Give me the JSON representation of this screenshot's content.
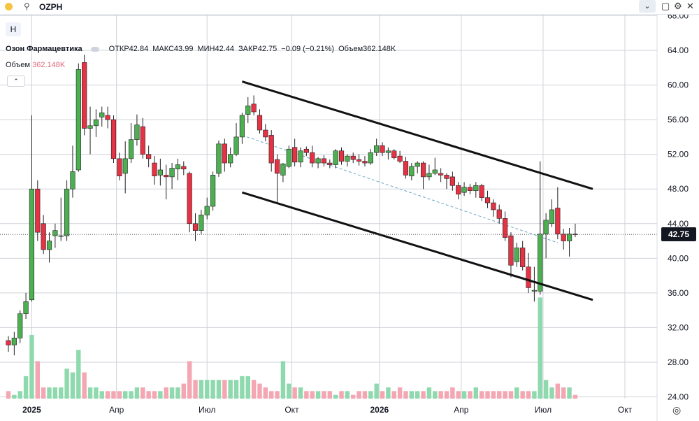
{
  "header": {
    "symbol": "OZPH",
    "search_icon": "search-icon",
    "dropdown_label": "⌄"
  },
  "toolbar": {
    "h_label": "H",
    "collapse_label": "⌃"
  },
  "legend": {
    "name": "Озон Фармацевтика",
    "open": "ОТКР42.84",
    "high": "МАКС43.99",
    "low": "МИН42.44",
    "close": "ЗАКР42.75",
    "change": "−0.09 (−0.21%)",
    "volume": "Объем362.148K",
    "volume_label": "Объем",
    "volume_value": "362.148K"
  },
  "last_price": "42.75",
  "colors": {
    "up": "#4caf50",
    "down": "#e53245",
    "vol_up": "#8ed9ad",
    "vol_down": "#f4a6b2",
    "channel": "#111111",
    "midline": "#6aa8c8"
  },
  "chart_data": {
    "type": "candlestick",
    "yaxis": {
      "ticks": [
        24,
        28,
        32,
        36,
        40,
        44,
        48,
        52,
        56,
        60,
        64,
        68
      ],
      "range": [
        23.8,
        68.2
      ]
    },
    "xaxis": {
      "labels": [
        "2025",
        "Апр",
        "Июл",
        "Окт",
        "2026",
        "Апр",
        "Июл",
        "Окт"
      ],
      "bold": [
        "2025",
        "2026"
      ]
    },
    "candles": [
      [
        30.5,
        31.0,
        29.2,
        30.0
      ],
      [
        30.0,
        31.5,
        28.8,
        30.8
      ],
      [
        30.8,
        34.0,
        30.2,
        33.6
      ],
      [
        33.6,
        36.0,
        33.0,
        35.0
      ],
      [
        35.2,
        56.5,
        35.0,
        48.0
      ],
      [
        48.0,
        49.0,
        42.0,
        43.0
      ],
      [
        44.0,
        45.0,
        40.5,
        41.0
      ],
      [
        41.0,
        43.0,
        39.5,
        42.0
      ],
      [
        42.6,
        44.0,
        41.2,
        43.2
      ],
      [
        42.6,
        47.0,
        42.0,
        42.6
      ],
      [
        42.6,
        49.0,
        42.0,
        48.0
      ],
      [
        48.0,
        53.0,
        47.0,
        50.0
      ],
      [
        50.2,
        62.5,
        50.0,
        61.8
      ],
      [
        62.6,
        63.5,
        54.2,
        55.0
      ],
      [
        55.0,
        57.5,
        52.0,
        55.3
      ],
      [
        55.3,
        57.2,
        54.0,
        56.0
      ],
      [
        56.3,
        57.5,
        55.2,
        56.8
      ],
      [
        56.5,
        57.5,
        55.0,
        56.0
      ],
      [
        56.0,
        56.5,
        51.0,
        51.5
      ],
      [
        51.5,
        52.2,
        49.0,
        49.5
      ],
      [
        49.8,
        53.5,
        47.5,
        51.5
      ],
      [
        51.5,
        55.6,
        51.0,
        53.7
      ],
      [
        53.7,
        56.6,
        53.0,
        55.4
      ],
      [
        55.2,
        56.2,
        51.5,
        52.0
      ],
      [
        52.0,
        53.0,
        50.5,
        51.5
      ],
      [
        51.0,
        51.8,
        48.5,
        49.5
      ],
      [
        49.6,
        51.5,
        48.4,
        50.2
      ],
      [
        49.6,
        50.8,
        46.8,
        49.4
      ],
      [
        49.4,
        51.0,
        48.0,
        50.4
      ],
      [
        50.3,
        51.5,
        49.0,
        50.8
      ],
      [
        50.6,
        51.2,
        49.6,
        50.3
      ],
      [
        49.8,
        50.0,
        43.0,
        44.0
      ],
      [
        44.0,
        45.2,
        42.0,
        43.2
      ],
      [
        43.2,
        45.6,
        42.8,
        45.0
      ],
      [
        45.0,
        47.0,
        44.5,
        46.0
      ],
      [
        46.0,
        50.0,
        45.5,
        49.6
      ],
      [
        49.8,
        53.6,
        49.4,
        53.2
      ],
      [
        53.2,
        53.8,
        50.0,
        51.0
      ],
      [
        51.0,
        52.8,
        50.5,
        52.0
      ],
      [
        52.0,
        55.6,
        51.8,
        54.0
      ],
      [
        54.0,
        56.8,
        53.2,
        56.5
      ],
      [
        56.6,
        58.6,
        55.6,
        57.6
      ],
      [
        57.8,
        58.8,
        56.5,
        56.9
      ],
      [
        56.5,
        57.2,
        54.4,
        54.8
      ],
      [
        54.8,
        55.5,
        53.5,
        54.0
      ],
      [
        54.2,
        54.8,
        50.0,
        51.0
      ],
      [
        51.4,
        52.0,
        46.5,
        49.8
      ],
      [
        49.6,
        51.0,
        48.8,
        50.9
      ],
      [
        50.6,
        53.0,
        50.4,
        52.6
      ],
      [
        52.8,
        53.8,
        50.6,
        51.1
      ],
      [
        51.1,
        52.8,
        50.5,
        52.4
      ],
      [
        52.6,
        52.9,
        51.8,
        52.2
      ],
      [
        52.2,
        53.0,
        50.5,
        51.0
      ],
      [
        51.0,
        51.7,
        50.4,
        51.5
      ],
      [
        51.5,
        51.9,
        50.6,
        51.0
      ],
      [
        51.0,
        51.4,
        50.4,
        50.8
      ],
      [
        50.8,
        52.6,
        50.4,
        52.4
      ],
      [
        52.4,
        52.8,
        50.8,
        51.2
      ],
      [
        51.2,
        52.0,
        50.6,
        51.8
      ],
      [
        51.8,
        52.2,
        51.0,
        51.4
      ],
      [
        51.4,
        52.0,
        50.7,
        51.2
      ],
      [
        51.2,
        51.8,
        50.6,
        51.0
      ],
      [
        51.0,
        52.6,
        50.8,
        52.2
      ],
      [
        52.2,
        53.8,
        51.8,
        53.0
      ],
      [
        53.0,
        53.4,
        51.8,
        52.2
      ],
      [
        52.2,
        52.8,
        51.4,
        52.4
      ],
      [
        52.4,
        52.6,
        51.4,
        51.6
      ],
      [
        51.8,
        52.4,
        51.0,
        51.2
      ],
      [
        51.2,
        51.7,
        49.2,
        49.6
      ],
      [
        49.5,
        51.0,
        49.0,
        50.6
      ],
      [
        50.6,
        51.2,
        49.8,
        51.0
      ],
      [
        51.0,
        51.2,
        48.0,
        49.4
      ],
      [
        49.4,
        50.8,
        49.0,
        49.8
      ],
      [
        49.8,
        51.6,
        49.6,
        50.2
      ],
      [
        49.8,
        50.4,
        48.8,
        49.6
      ],
      [
        49.6,
        49.8,
        48.0,
        49.2
      ],
      [
        49.4,
        50.0,
        47.8,
        48.4
      ],
      [
        48.4,
        48.8,
        46.8,
        47.4
      ],
      [
        47.6,
        48.8,
        47.2,
        48.2
      ],
      [
        48.2,
        48.6,
        47.4,
        47.8
      ],
      [
        47.8,
        48.8,
        47.0,
        48.4
      ],
      [
        48.4,
        48.6,
        46.6,
        47.0
      ],
      [
        47.0,
        47.8,
        45.8,
        46.4
      ],
      [
        46.4,
        46.8,
        44.8,
        45.6
      ],
      [
        45.6,
        46.2,
        44.0,
        44.6
      ],
      [
        44.6,
        45.4,
        42.0,
        42.4
      ],
      [
        42.6,
        43.0,
        37.8,
        39.2
      ],
      [
        39.6,
        41.8,
        39.0,
        41.2
      ],
      [
        41.2,
        42.0,
        38.6,
        39.0
      ],
      [
        39.0,
        40.6,
        36.0,
        36.6
      ],
      [
        36.2,
        39.0,
        35.0,
        36.3
      ],
      [
        36.2,
        51.2,
        35.8,
        42.8
      ],
      [
        42.8,
        45.2,
        40.0,
        44.4
      ],
      [
        44.0,
        46.8,
        43.6,
        45.6
      ],
      [
        45.8,
        48.2,
        42.2,
        42.8
      ],
      [
        42.8,
        43.4,
        41.0,
        42.0
      ],
      [
        42.0,
        43.5,
        40.2,
        42.8
      ],
      [
        42.8,
        43.99,
        42.44,
        42.75
      ]
    ],
    "volume": [
      2,
      1,
      2,
      6,
      17,
      10,
      3,
      3,
      3,
      3,
      8,
      7,
      13,
      7,
      3,
      3,
      2,
      2,
      2,
      2,
      2,
      2,
      3,
      3,
      2,
      2,
      2,
      3,
      3,
      3,
      4,
      10,
      5,
      5,
      5,
      5,
      5,
      5,
      5,
      5,
      6,
      6,
      5,
      4,
      3,
      2,
      2,
      10,
      4,
      3,
      3,
      2,
      2,
      2,
      2,
      2,
      1,
      2,
      2,
      1,
      2,
      2,
      2,
      4,
      2,
      3,
      2,
      3,
      2,
      2,
      2,
      2,
      3,
      2,
      2,
      2,
      3,
      2,
      2,
      2,
      3,
      2,
      2,
      2,
      2,
      2,
      2,
      3,
      2,
      2,
      2,
      27,
      5,
      3,
      4,
      3,
      3,
      1
    ],
    "volume_ylim": [
      0,
      28
    ],
    "channel_upper": {
      "from": [
        40,
        60.4
      ],
      "to": [
        100,
        48.0
      ]
    },
    "channel_lower": {
      "from": [
        40,
        47.6
      ],
      "to": [
        100,
        35.2
      ]
    },
    "midline": {
      "from": [
        40,
        54.2
      ],
      "to": [
        94,
        41.8
      ]
    }
  }
}
